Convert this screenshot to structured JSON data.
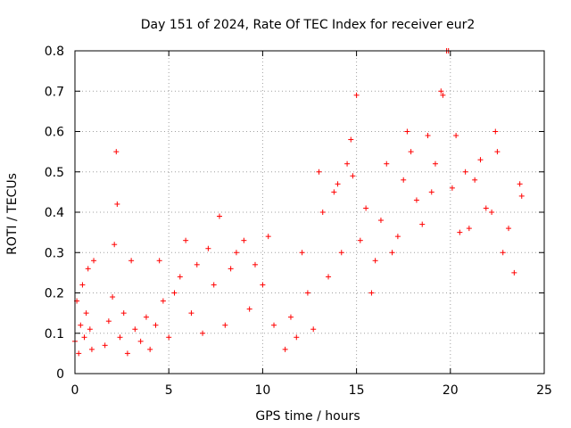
{
  "chart_data": {
    "type": "scatter",
    "title": "Day 151 of 2024, Rate Of TEC Index for receiver eur2",
    "xlabel": "GPS time / hours",
    "ylabel": "ROTI / TECUs",
    "xlim": [
      0,
      25
    ],
    "ylim": [
      0,
      0.8
    ],
    "xticks": [
      0,
      5,
      10,
      15,
      20,
      25
    ],
    "yticks": [
      0,
      0.1,
      0.2,
      0.3,
      0.4,
      0.5,
      0.6,
      0.7,
      0.8
    ],
    "xtick_labels": [
      "0",
      "5",
      "10",
      "15",
      "20",
      "25"
    ],
    "ytick_labels": [
      "0",
      "0.1",
      "0.2",
      "0.3",
      "0.4",
      "0.5",
      "0.6",
      "0.7",
      "0.8"
    ],
    "grid": true,
    "marker": "+",
    "color": "#ff0000",
    "series": [
      {
        "name": "ROTI",
        "points": [
          [
            0.0,
            0.08
          ],
          [
            0.1,
            0.18
          ],
          [
            0.2,
            0.05
          ],
          [
            0.3,
            0.12
          ],
          [
            0.4,
            0.22
          ],
          [
            0.5,
            0.09
          ],
          [
            0.6,
            0.15
          ],
          [
            0.7,
            0.26
          ],
          [
            0.8,
            0.11
          ],
          [
            0.9,
            0.06
          ],
          [
            1.0,
            0.28
          ],
          [
            1.6,
            0.07
          ],
          [
            1.8,
            0.13
          ],
          [
            2.0,
            0.19
          ],
          [
            2.1,
            0.32
          ],
          [
            2.2,
            0.55
          ],
          [
            2.25,
            0.42
          ],
          [
            2.4,
            0.09
          ],
          [
            2.6,
            0.15
          ],
          [
            2.8,
            0.05
          ],
          [
            3.0,
            0.28
          ],
          [
            3.2,
            0.11
          ],
          [
            3.5,
            0.08
          ],
          [
            3.8,
            0.14
          ],
          [
            4.0,
            0.06
          ],
          [
            4.3,
            0.12
          ],
          [
            4.5,
            0.28
          ],
          [
            4.7,
            0.18
          ],
          [
            5.0,
            0.09
          ],
          [
            5.3,
            0.2
          ],
          [
            5.6,
            0.24
          ],
          [
            5.9,
            0.33
          ],
          [
            6.2,
            0.15
          ],
          [
            6.5,
            0.27
          ],
          [
            6.8,
            0.1
          ],
          [
            7.1,
            0.31
          ],
          [
            7.4,
            0.22
          ],
          [
            7.7,
            0.39
          ],
          [
            8.0,
            0.12
          ],
          [
            8.3,
            0.26
          ],
          [
            8.6,
            0.3
          ],
          [
            9.0,
            0.33
          ],
          [
            9.3,
            0.16
          ],
          [
            9.6,
            0.27
          ],
          [
            10.0,
            0.22
          ],
          [
            10.3,
            0.34
          ],
          [
            10.6,
            0.12
          ],
          [
            11.2,
            0.06
          ],
          [
            11.5,
            0.14
          ],
          [
            11.8,
            0.09
          ],
          [
            12.1,
            0.3
          ],
          [
            12.4,
            0.2
          ],
          [
            12.7,
            0.11
          ],
          [
            13.0,
            0.5
          ],
          [
            13.2,
            0.4
          ],
          [
            13.5,
            0.24
          ],
          [
            13.8,
            0.45
          ],
          [
            14.0,
            0.47
          ],
          [
            14.2,
            0.3
          ],
          [
            14.5,
            0.52
          ],
          [
            14.7,
            0.58
          ],
          [
            14.8,
            0.49
          ],
          [
            15.0,
            0.69
          ],
          [
            15.2,
            0.33
          ],
          [
            15.5,
            0.41
          ],
          [
            15.8,
            0.2
          ],
          [
            16.0,
            0.28
          ],
          [
            16.3,
            0.38
          ],
          [
            16.6,
            0.52
          ],
          [
            16.9,
            0.3
          ],
          [
            17.2,
            0.34
          ],
          [
            17.5,
            0.48
          ],
          [
            17.7,
            0.6
          ],
          [
            17.9,
            0.55
          ],
          [
            18.2,
            0.43
          ],
          [
            18.5,
            0.37
          ],
          [
            18.8,
            0.59
          ],
          [
            19.0,
            0.45
          ],
          [
            19.2,
            0.52
          ],
          [
            19.5,
            0.7
          ],
          [
            19.6,
            0.69
          ],
          [
            19.8,
            0.8
          ],
          [
            19.9,
            0.8
          ],
          [
            20.1,
            0.46
          ],
          [
            20.3,
            0.59
          ],
          [
            20.5,
            0.35
          ],
          [
            20.8,
            0.5
          ],
          [
            21.0,
            0.36
          ],
          [
            21.3,
            0.48
          ],
          [
            21.6,
            0.53
          ],
          [
            21.9,
            0.41
          ],
          [
            22.2,
            0.4
          ],
          [
            22.4,
            0.6
          ],
          [
            22.5,
            0.55
          ],
          [
            22.8,
            0.3
          ],
          [
            23.1,
            0.36
          ],
          [
            23.4,
            0.25
          ],
          [
            23.7,
            0.47
          ],
          [
            23.8,
            0.44
          ]
        ]
      }
    ]
  }
}
